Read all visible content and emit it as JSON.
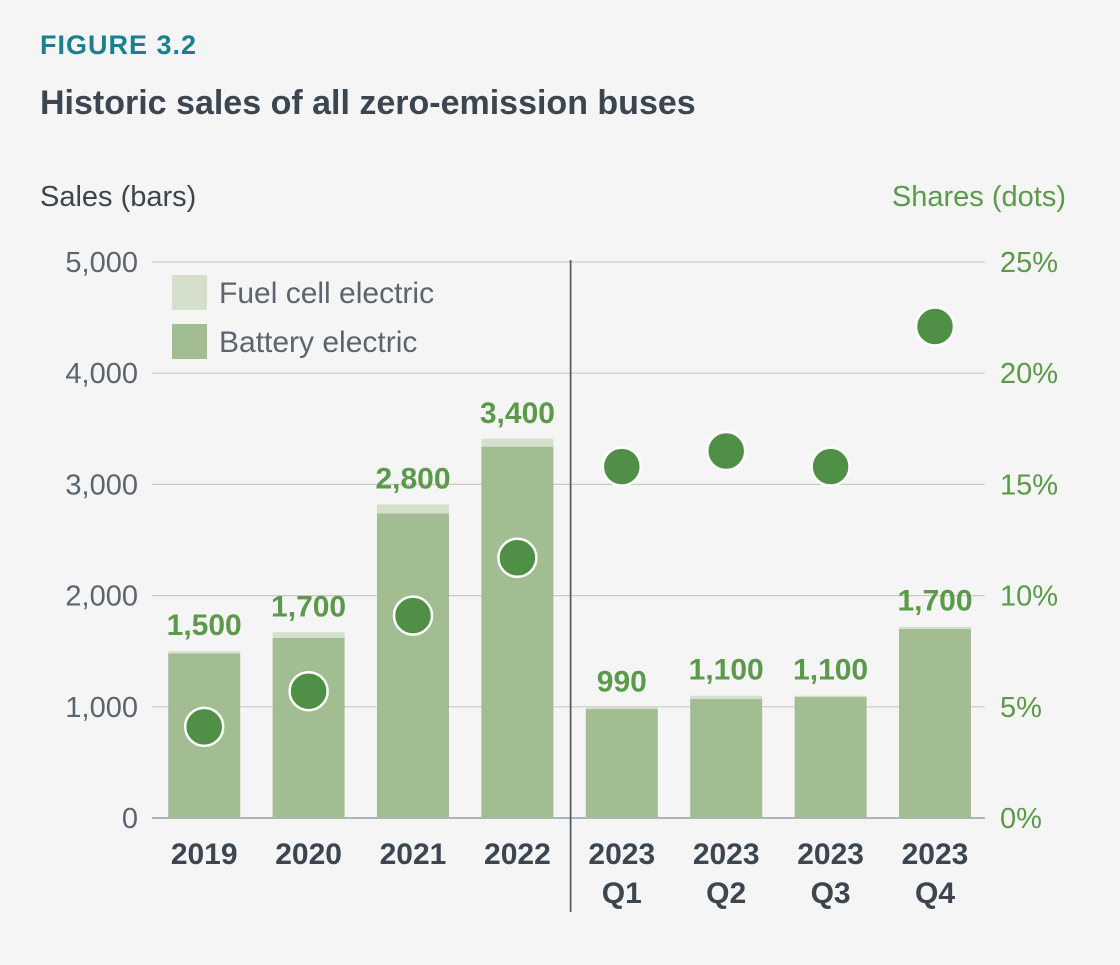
{
  "figure_label": "FIGURE 3.2",
  "title": "Historic sales of all zero-emission buses",
  "colors": {
    "battery": "#a3bd93",
    "fuel_cell": "#d4e0cc",
    "dot": "#4f8f46",
    "total_label": "#5b9a4a",
    "right_axis": "#5b9a4a",
    "left_axis": "#5a6570",
    "grid": "#c9c9c9",
    "title": "#3b4650",
    "figure_label": "#1a7f8e"
  },
  "chart_data": {
    "type": "bar",
    "title": "Historic sales of all zero-emission buses",
    "ylabel": "Sales (bars)",
    "y2label": "Shares (dots)",
    "ylim": [
      0,
      5000
    ],
    "y2lim": [
      0,
      25
    ],
    "yticks": [
      "0",
      "1,000",
      "2,000",
      "3,000",
      "4,000",
      "5,000"
    ],
    "y2ticks": [
      "0%",
      "5%",
      "10%",
      "15%",
      "20%",
      "25%"
    ],
    "grid": true,
    "legend_position": "top-left",
    "categories": [
      [
        "2019"
      ],
      [
        "2020"
      ],
      [
        "2021"
      ],
      [
        "2022"
      ],
      [
        "2023",
        "Q1"
      ],
      [
        "2023",
        "Q2"
      ],
      [
        "2023",
        "Q3"
      ],
      [
        "2023",
        "Q4"
      ]
    ],
    "series": [
      {
        "name": "Battery electric",
        "type": "stacked-bar",
        "values": [
          1480,
          1620,
          2740,
          3340,
          980,
          1070,
          1090,
          1700
        ]
      },
      {
        "name": "Fuel cell electric",
        "type": "stacked-bar",
        "values": [
          20,
          50,
          80,
          70,
          15,
          30,
          10,
          20
        ]
      },
      {
        "name": "Share",
        "type": "dots",
        "axis": "right",
        "values": [
          4.1,
          5.7,
          9.1,
          11.7,
          15.8,
          16.5,
          15.8,
          22.1
        ]
      }
    ],
    "total_labels": [
      "1,500",
      "1,700",
      "2,800",
      "3,400",
      "990",
      "1,100",
      "1,100",
      "1,700"
    ],
    "divider_after_index": 3
  }
}
